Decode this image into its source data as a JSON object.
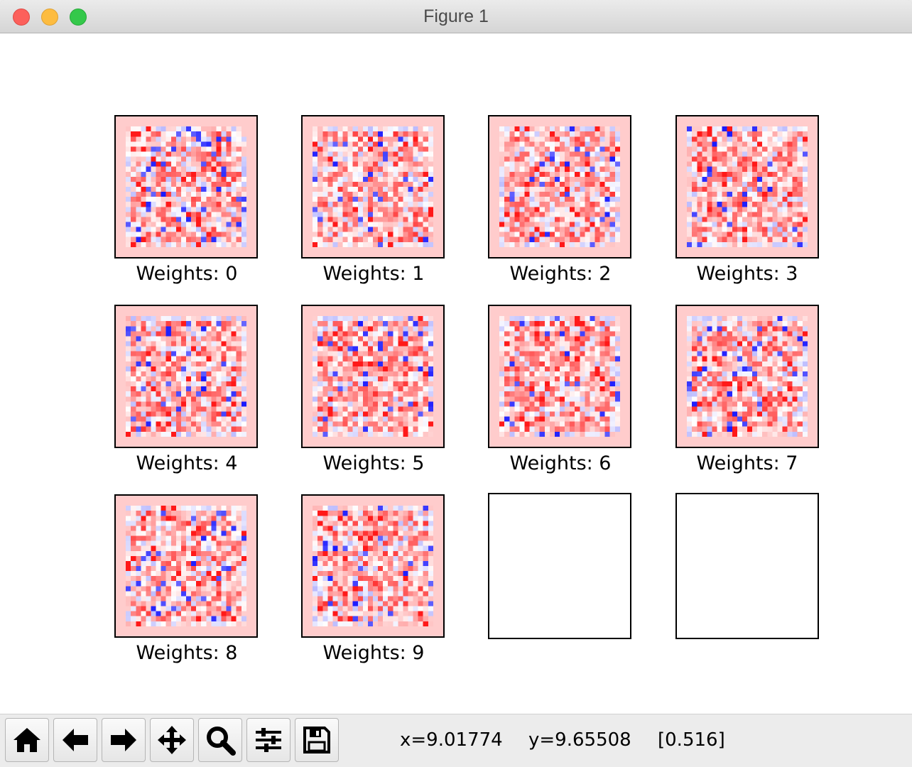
{
  "window": {
    "title": "Figure 1"
  },
  "figure": {
    "colormap": "bwr",
    "panels": [
      {
        "title": "Weights: 0"
      },
      {
        "title": "Weights: 1"
      },
      {
        "title": "Weights: 2"
      },
      {
        "title": "Weights: 3"
      },
      {
        "title": "Weights: 4"
      },
      {
        "title": "Weights: 5"
      },
      {
        "title": "Weights: 6"
      },
      {
        "title": "Weights: 7"
      },
      {
        "title": "Weights: 8"
      },
      {
        "title": "Weights: 9"
      },
      {
        "title": ""
      },
      {
        "title": ""
      }
    ]
  },
  "toolbar": {
    "buttons": [
      {
        "name": "home",
        "icon": "home-icon"
      },
      {
        "name": "back",
        "icon": "arrow-left-icon"
      },
      {
        "name": "forward",
        "icon": "arrow-right-icon"
      },
      {
        "name": "pan",
        "icon": "move-icon"
      },
      {
        "name": "zoom",
        "icon": "magnifier-icon"
      },
      {
        "name": "configure-subplots",
        "icon": "sliders-icon"
      },
      {
        "name": "save",
        "icon": "floppy-disk-icon"
      }
    ],
    "cursor_x": "x=9.01774",
    "cursor_y": "y=9.65508",
    "cursor_value": "[0.516]"
  },
  "colors": {
    "positive": "#ff0000",
    "negative": "#0000ff",
    "background_weight": "#ffcccc"
  }
}
